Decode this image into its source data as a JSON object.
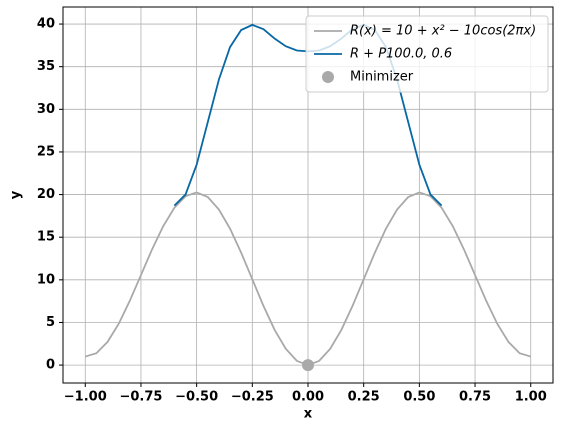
{
  "chart_data": {
    "type": "line",
    "xlabel": "x",
    "ylabel": "y",
    "xlim": [
      -1.1,
      1.1
    ],
    "ylim": [
      -2.1,
      42.0
    ],
    "xticks": [
      {
        "value": -1,
        "label": "−1.00"
      },
      {
        "value": -0.75,
        "label": "−0.75"
      },
      {
        "value": -0.5,
        "label": "−0.50"
      },
      {
        "value": -0.25,
        "label": "−0.25"
      },
      {
        "value": 0,
        "label": "0.00"
      },
      {
        "value": 0.25,
        "label": "0.25"
      },
      {
        "value": 0.5,
        "label": "0.50"
      },
      {
        "value": 0.75,
        "label": "0.75"
      },
      {
        "value": 1,
        "label": "1.00"
      }
    ],
    "yticks": [
      0,
      5,
      10,
      15,
      20,
      25,
      30,
      35,
      40
    ],
    "grid": true,
    "legend": "upper right",
    "series": [
      {
        "name": "R(x) = 10 + x² − 10cos(2πx)",
        "color": "#a9a9a9",
        "type": "line",
        "x": [
          -1,
          -0.95,
          -0.9,
          -0.85,
          -0.8,
          -0.75,
          -0.7,
          -0.65,
          -0.6,
          -0.55,
          -0.5,
          -0.45,
          -0.4,
          -0.35,
          -0.3,
          -0.25,
          -0.2,
          -0.15,
          -0.1,
          -0.05,
          0,
          0.05,
          0.1,
          0.15,
          0.2,
          0.25,
          0.3,
          0.35,
          0.4,
          0.45,
          0.5,
          0.55,
          0.6,
          0.65,
          0.7,
          0.75,
          0.8,
          0.85,
          0.9,
          0.95,
          1
        ],
        "values": [
          1,
          1.39,
          2.72,
          4.84,
          7.55,
          10.56,
          13.58,
          16.3,
          18.45,
          19.81,
          20.25,
          19.71,
          18.25,
          16.0,
          13.18,
          10.06,
          6.95,
          4.14,
          1.92,
          0.49,
          0,
          0.49,
          1.92,
          4.14,
          6.95,
          10.06,
          13.18,
          16.0,
          18.25,
          19.71,
          20.25,
          19.81,
          18.45,
          16.3,
          13.58,
          10.56,
          7.55,
          4.84,
          2.72,
          1.39,
          1
        ]
      },
      {
        "name": "R + P100.0, 0.6",
        "color": "#0868a5",
        "type": "line",
        "x": [
          -0.6,
          -0.55,
          -0.5,
          -0.45,
          -0.4,
          -0.35,
          -0.3,
          -0.25,
          -0.2,
          -0.15,
          -0.1,
          -0.05,
          0,
          0.05,
          0.1,
          0.15,
          0.2,
          0.25,
          0.3,
          0.35,
          0.4,
          0.45,
          0.5,
          0.55,
          0.6
        ],
        "values": [
          18.7,
          20.0,
          23.5,
          28.5,
          33.5,
          37.3,
          39.3,
          39.9,
          39.4,
          38.3,
          37.4,
          36.9,
          36.8,
          36.9,
          37.4,
          38.3,
          39.4,
          39.9,
          39.3,
          37.3,
          33.5,
          28.5,
          23.5,
          20.0,
          18.7
        ]
      },
      {
        "name": "Minimizer",
        "color": "#a9a9a9",
        "type": "scatter",
        "x": [
          0
        ],
        "values": [
          0
        ]
      }
    ]
  }
}
